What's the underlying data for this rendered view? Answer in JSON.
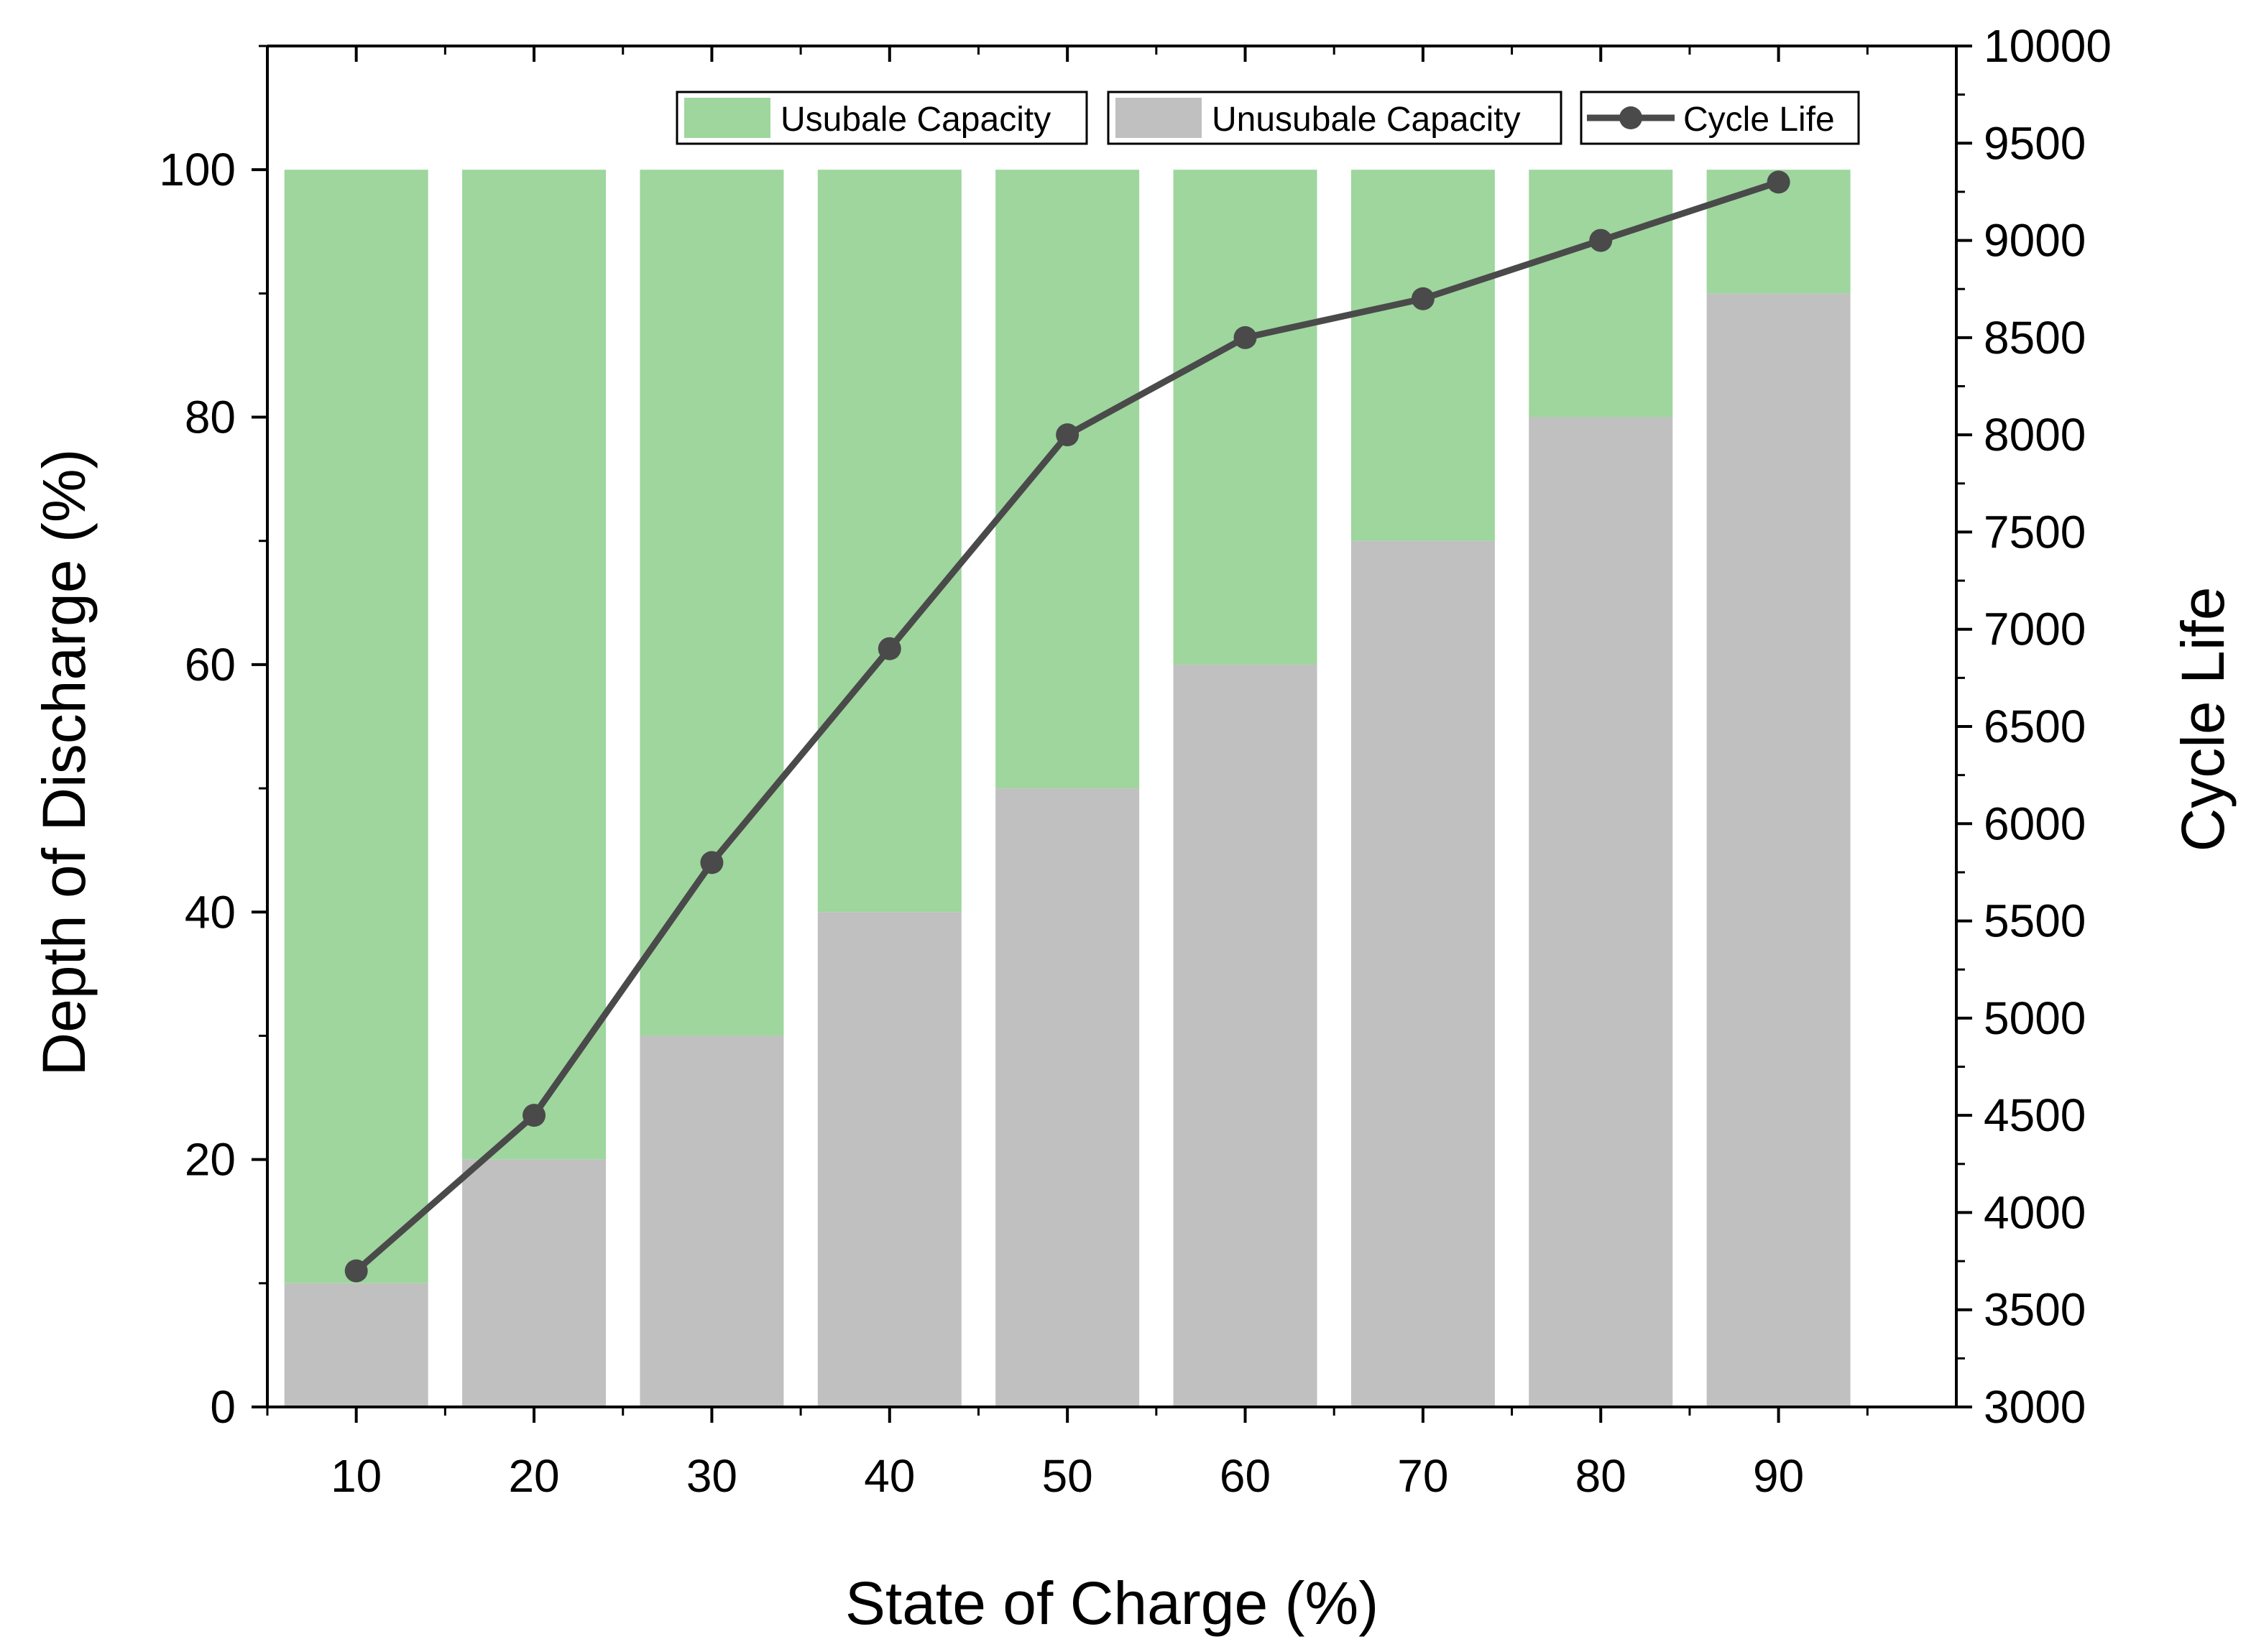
{
  "chart_data": {
    "type": "bar",
    "stacked": true,
    "categories": [
      "10",
      "20",
      "30",
      "40",
      "50",
      "60",
      "70",
      "80",
      "90"
    ],
    "series": [
      {
        "name": "Unusubale Capacity",
        "axis": "left",
        "color": "#c0c0c0",
        "values": [
          10,
          20,
          30,
          40,
          50,
          60,
          70,
          80,
          90
        ]
      },
      {
        "name": "Usubale Capacity",
        "axis": "left",
        "color": "#9ed69e",
        "values": [
          90,
          80,
          70,
          60,
          50,
          40,
          30,
          20,
          10
        ]
      },
      {
        "name": "Cycle Life",
        "type": "line",
        "axis": "right",
        "color": "#4a4a4a",
        "values": [
          3700,
          4500,
          5800,
          6900,
          8000,
          8500,
          8700,
          9000,
          9300
        ]
      }
    ],
    "xlabel": "State of Charge (%)",
    "ylabel": "Depth of Discharge (%)",
    "y2label": "Cycle Life",
    "xlim": [
      5,
      100
    ],
    "ylim": [
      0,
      110
    ],
    "y2lim": [
      3000,
      10000
    ],
    "yticks": [
      0,
      20,
      40,
      60,
      80,
      100
    ],
    "y2ticks": [
      3000,
      3500,
      4000,
      4500,
      5000,
      5500,
      6000,
      6500,
      7000,
      7500,
      8000,
      8500,
      9000,
      9500,
      10000
    ],
    "legend": {
      "position": "top-right",
      "entries": [
        "Usubale Capacity",
        "Unusubale Capacity",
        "Cycle Life"
      ]
    },
    "grid": false
  }
}
